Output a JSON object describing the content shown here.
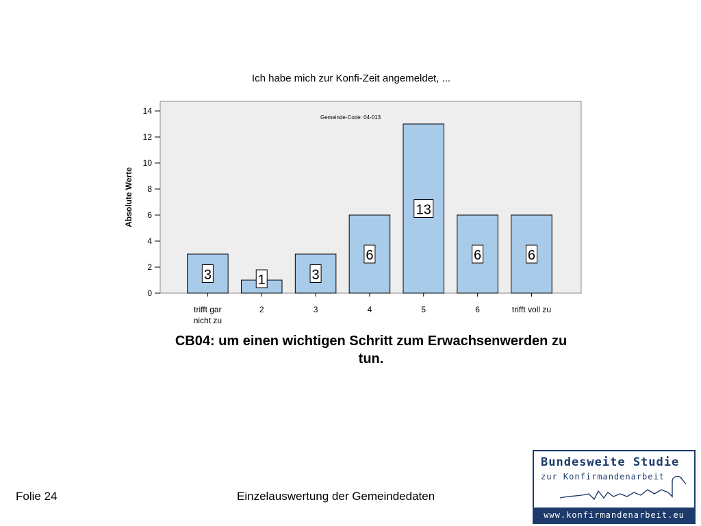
{
  "chart_data": {
    "type": "bar",
    "title": "Ich habe mich zur Konfi-Zeit angemeldet, ...",
    "annotation": "Gemeinde-Code: 04-013",
    "ylabel": "Absolute Werte",
    "xlabel": "CB04: um einen wichtigen Schritt zum Erwachsenwerden zu tun.",
    "categories": [
      "trifft gar nicht zu",
      "2",
      "3",
      "4",
      "5",
      "6",
      "trifft voll zu"
    ],
    "values": [
      3,
      1,
      3,
      6,
      13,
      6,
      6
    ],
    "ylim": [
      0,
      14
    ],
    "yticks": [
      0,
      2,
      4,
      6,
      8,
      10,
      12,
      14
    ],
    "grid": false,
    "bar_color": "#a8cbea",
    "plot_background": "#eeeeee"
  },
  "footer": {
    "slide_label": "Folie 24",
    "center_text": "Einzelauswertung der Gemeindedaten"
  },
  "logo": {
    "line1": "Bundesweite Studie",
    "line2": "zur Konfirmandenarbeit",
    "url": "www.konfirmandenarbeit.eu"
  }
}
